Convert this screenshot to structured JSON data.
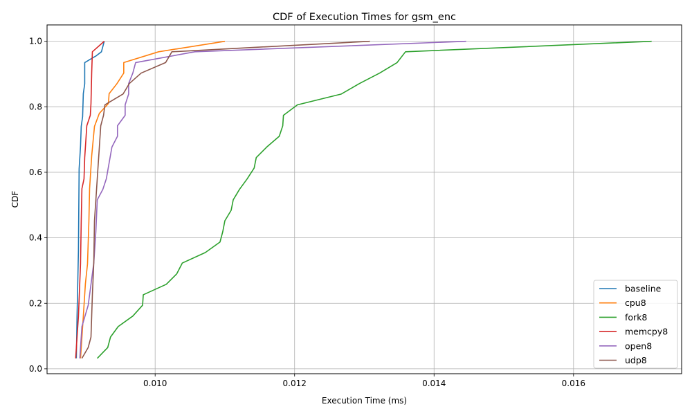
{
  "chart_data": {
    "type": "line",
    "title": "CDF of Execution Times for gsm_enc",
    "xlabel": "Execution Time (ms)",
    "ylabel": "CDF",
    "xlim": [
      0.00845,
      0.01755
    ],
    "ylim": [
      -0.015,
      1.05
    ],
    "x_ticks": [
      {
        "value": 0.01,
        "label": "0.010"
      },
      {
        "value": 0.012,
        "label": "0.012"
      },
      {
        "value": 0.014,
        "label": "0.014"
      },
      {
        "value": 0.016,
        "label": "0.016"
      }
    ],
    "y_ticks": [
      {
        "value": 0.0,
        "label": "0.0"
      },
      {
        "value": 0.2,
        "label": "0.2"
      },
      {
        "value": 0.4,
        "label": "0.4"
      },
      {
        "value": 0.6,
        "label": "0.6"
      },
      {
        "value": 0.8,
        "label": "0.8"
      },
      {
        "value": 1.0,
        "label": "1.0"
      }
    ],
    "grid": true,
    "legend_position": "lower-right",
    "series": [
      {
        "name": "baseline",
        "color": "#1f77b4",
        "points": [
          [
            0.00887,
            0.032
          ],
          [
            0.00888,
            0.16
          ],
          [
            0.00889,
            0.26
          ],
          [
            0.0089,
            0.36
          ],
          [
            0.00891,
            0.61
          ],
          [
            0.00893,
            0.68
          ],
          [
            0.00894,
            0.74
          ],
          [
            0.00896,
            0.77
          ],
          [
            0.00897,
            0.84
          ],
          [
            0.00899,
            0.87
          ],
          [
            0.00899,
            0.935
          ],
          [
            0.00915,
            0.955
          ],
          [
            0.00923,
            0.968
          ],
          [
            0.00927,
            1.0
          ]
        ]
      },
      {
        "name": "cpu8",
        "color": "#ff7f0e",
        "points": [
          [
            0.00893,
            0.032
          ],
          [
            0.00897,
            0.16
          ],
          [
            0.009,
            0.26
          ],
          [
            0.00903,
            0.32
          ],
          [
            0.00905,
            0.45
          ],
          [
            0.00906,
            0.55
          ],
          [
            0.00909,
            0.65
          ],
          [
            0.00913,
            0.74
          ],
          [
            0.0092,
            0.78
          ],
          [
            0.00933,
            0.81
          ],
          [
            0.00934,
            0.84
          ],
          [
            0.00945,
            0.87
          ],
          [
            0.00955,
            0.903
          ],
          [
            0.00955,
            0.935
          ],
          [
            0.01005,
            0.968
          ],
          [
            0.011,
            1.0
          ]
        ]
      },
      {
        "name": "fork8",
        "color": "#2ca02c",
        "points": [
          [
            0.00917,
            0.032
          ],
          [
            0.00932,
            0.065
          ],
          [
            0.00936,
            0.097
          ],
          [
            0.00947,
            0.129
          ],
          [
            0.00968,
            0.161
          ],
          [
            0.00982,
            0.194
          ],
          [
            0.00983,
            0.226
          ],
          [
            0.01016,
            0.258
          ],
          [
            0.01031,
            0.29
          ],
          [
            0.01039,
            0.323
          ],
          [
            0.01072,
            0.355
          ],
          [
            0.01093,
            0.387
          ],
          [
            0.01097,
            0.419
          ],
          [
            0.011,
            0.452
          ],
          [
            0.01109,
            0.484
          ],
          [
            0.01112,
            0.516
          ],
          [
            0.01121,
            0.548
          ],
          [
            0.01132,
            0.58
          ],
          [
            0.01142,
            0.613
          ],
          [
            0.01145,
            0.645
          ],
          [
            0.0116,
            0.677
          ],
          [
            0.01178,
            0.71
          ],
          [
            0.01183,
            0.742
          ],
          [
            0.01184,
            0.774
          ],
          [
            0.01204,
            0.806
          ],
          [
            0.01267,
            0.839
          ],
          [
            0.01293,
            0.871
          ],
          [
            0.01322,
            0.903
          ],
          [
            0.01347,
            0.935
          ],
          [
            0.01359,
            0.968
          ],
          [
            0.01712,
            1.0
          ]
        ]
      },
      {
        "name": "memcpy8",
        "color": "#d62728",
        "points": [
          [
            0.00886,
            0.032
          ],
          [
            0.0089,
            0.16
          ],
          [
            0.00893,
            0.32
          ],
          [
            0.00894,
            0.45
          ],
          [
            0.00895,
            0.55
          ],
          [
            0.00898,
            0.58
          ],
          [
            0.00899,
            0.645
          ],
          [
            0.00902,
            0.742
          ],
          [
            0.00907,
            0.774
          ],
          [
            0.00908,
            0.81
          ],
          [
            0.00909,
            0.903
          ],
          [
            0.0091,
            0.968
          ],
          [
            0.00927,
            1.0
          ]
        ]
      },
      {
        "name": "open8",
        "color": "#9467bd",
        "points": [
          [
            0.00892,
            0.032
          ],
          [
            0.00895,
            0.129
          ],
          [
            0.00904,
            0.194
          ],
          [
            0.00908,
            0.258
          ],
          [
            0.00912,
            0.323
          ],
          [
            0.00915,
            0.419
          ],
          [
            0.00917,
            0.516
          ],
          [
            0.00925,
            0.548
          ],
          [
            0.0093,
            0.58
          ],
          [
            0.00938,
            0.677
          ],
          [
            0.00946,
            0.71
          ],
          [
            0.00946,
            0.742
          ],
          [
            0.00957,
            0.774
          ],
          [
            0.00957,
            0.806
          ],
          [
            0.00962,
            0.839
          ],
          [
            0.00962,
            0.871
          ],
          [
            0.00968,
            0.903
          ],
          [
            0.00972,
            0.935
          ],
          [
            0.01057,
            0.968
          ],
          [
            0.01446,
            1.0
          ]
        ]
      },
      {
        "name": "udp8",
        "color": "#8c564b",
        "points": [
          [
            0.00895,
            0.032
          ],
          [
            0.00904,
            0.065
          ],
          [
            0.00908,
            0.097
          ],
          [
            0.00909,
            0.161
          ],
          [
            0.0091,
            0.226
          ],
          [
            0.00912,
            0.323
          ],
          [
            0.00913,
            0.452
          ],
          [
            0.00916,
            0.548
          ],
          [
            0.00918,
            0.613
          ],
          [
            0.0092,
            0.677
          ],
          [
            0.00922,
            0.742
          ],
          [
            0.00926,
            0.774
          ],
          [
            0.00928,
            0.806
          ],
          [
            0.00954,
            0.839
          ],
          [
            0.00963,
            0.871
          ],
          [
            0.0098,
            0.903
          ],
          [
            0.01015,
            0.935
          ],
          [
            0.01024,
            0.968
          ],
          [
            0.01308,
            1.0
          ]
        ]
      }
    ]
  }
}
